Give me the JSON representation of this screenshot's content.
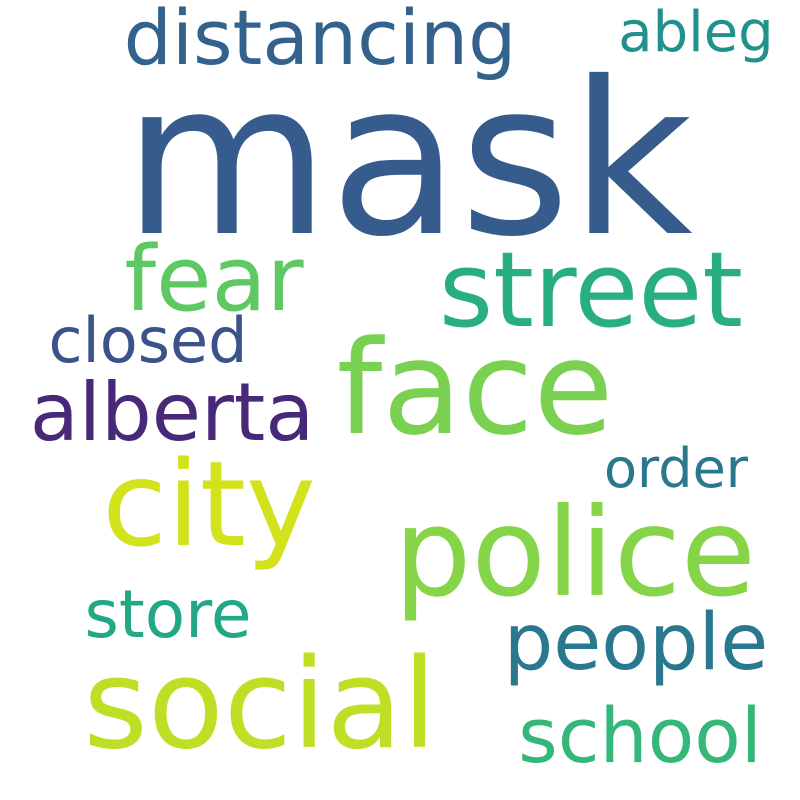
{
  "words": [
    {
      "text": "mask",
      "color": "#365c8d"
    },
    {
      "text": "distancing",
      "color": "#33638d"
    },
    {
      "text": "ableg",
      "color": "#21918c"
    },
    {
      "text": "street",
      "color": "#28ae80"
    },
    {
      "text": "fear",
      "color": "#5ec962"
    },
    {
      "text": "face",
      "color": "#7ad151"
    },
    {
      "text": "closed",
      "color": "#3b528b"
    },
    {
      "text": "alberta",
      "color": "#482878"
    },
    {
      "text": "city",
      "color": "#d2e21b"
    },
    {
      "text": "police",
      "color": "#86d549"
    },
    {
      "text": "order",
      "color": "#2a788e"
    },
    {
      "text": "store",
      "color": "#22a884"
    },
    {
      "text": "people",
      "color": "#2a788e"
    },
    {
      "text": "social",
      "color": "#bddf26"
    },
    {
      "text": "school",
      "color": "#35b779"
    }
  ]
}
